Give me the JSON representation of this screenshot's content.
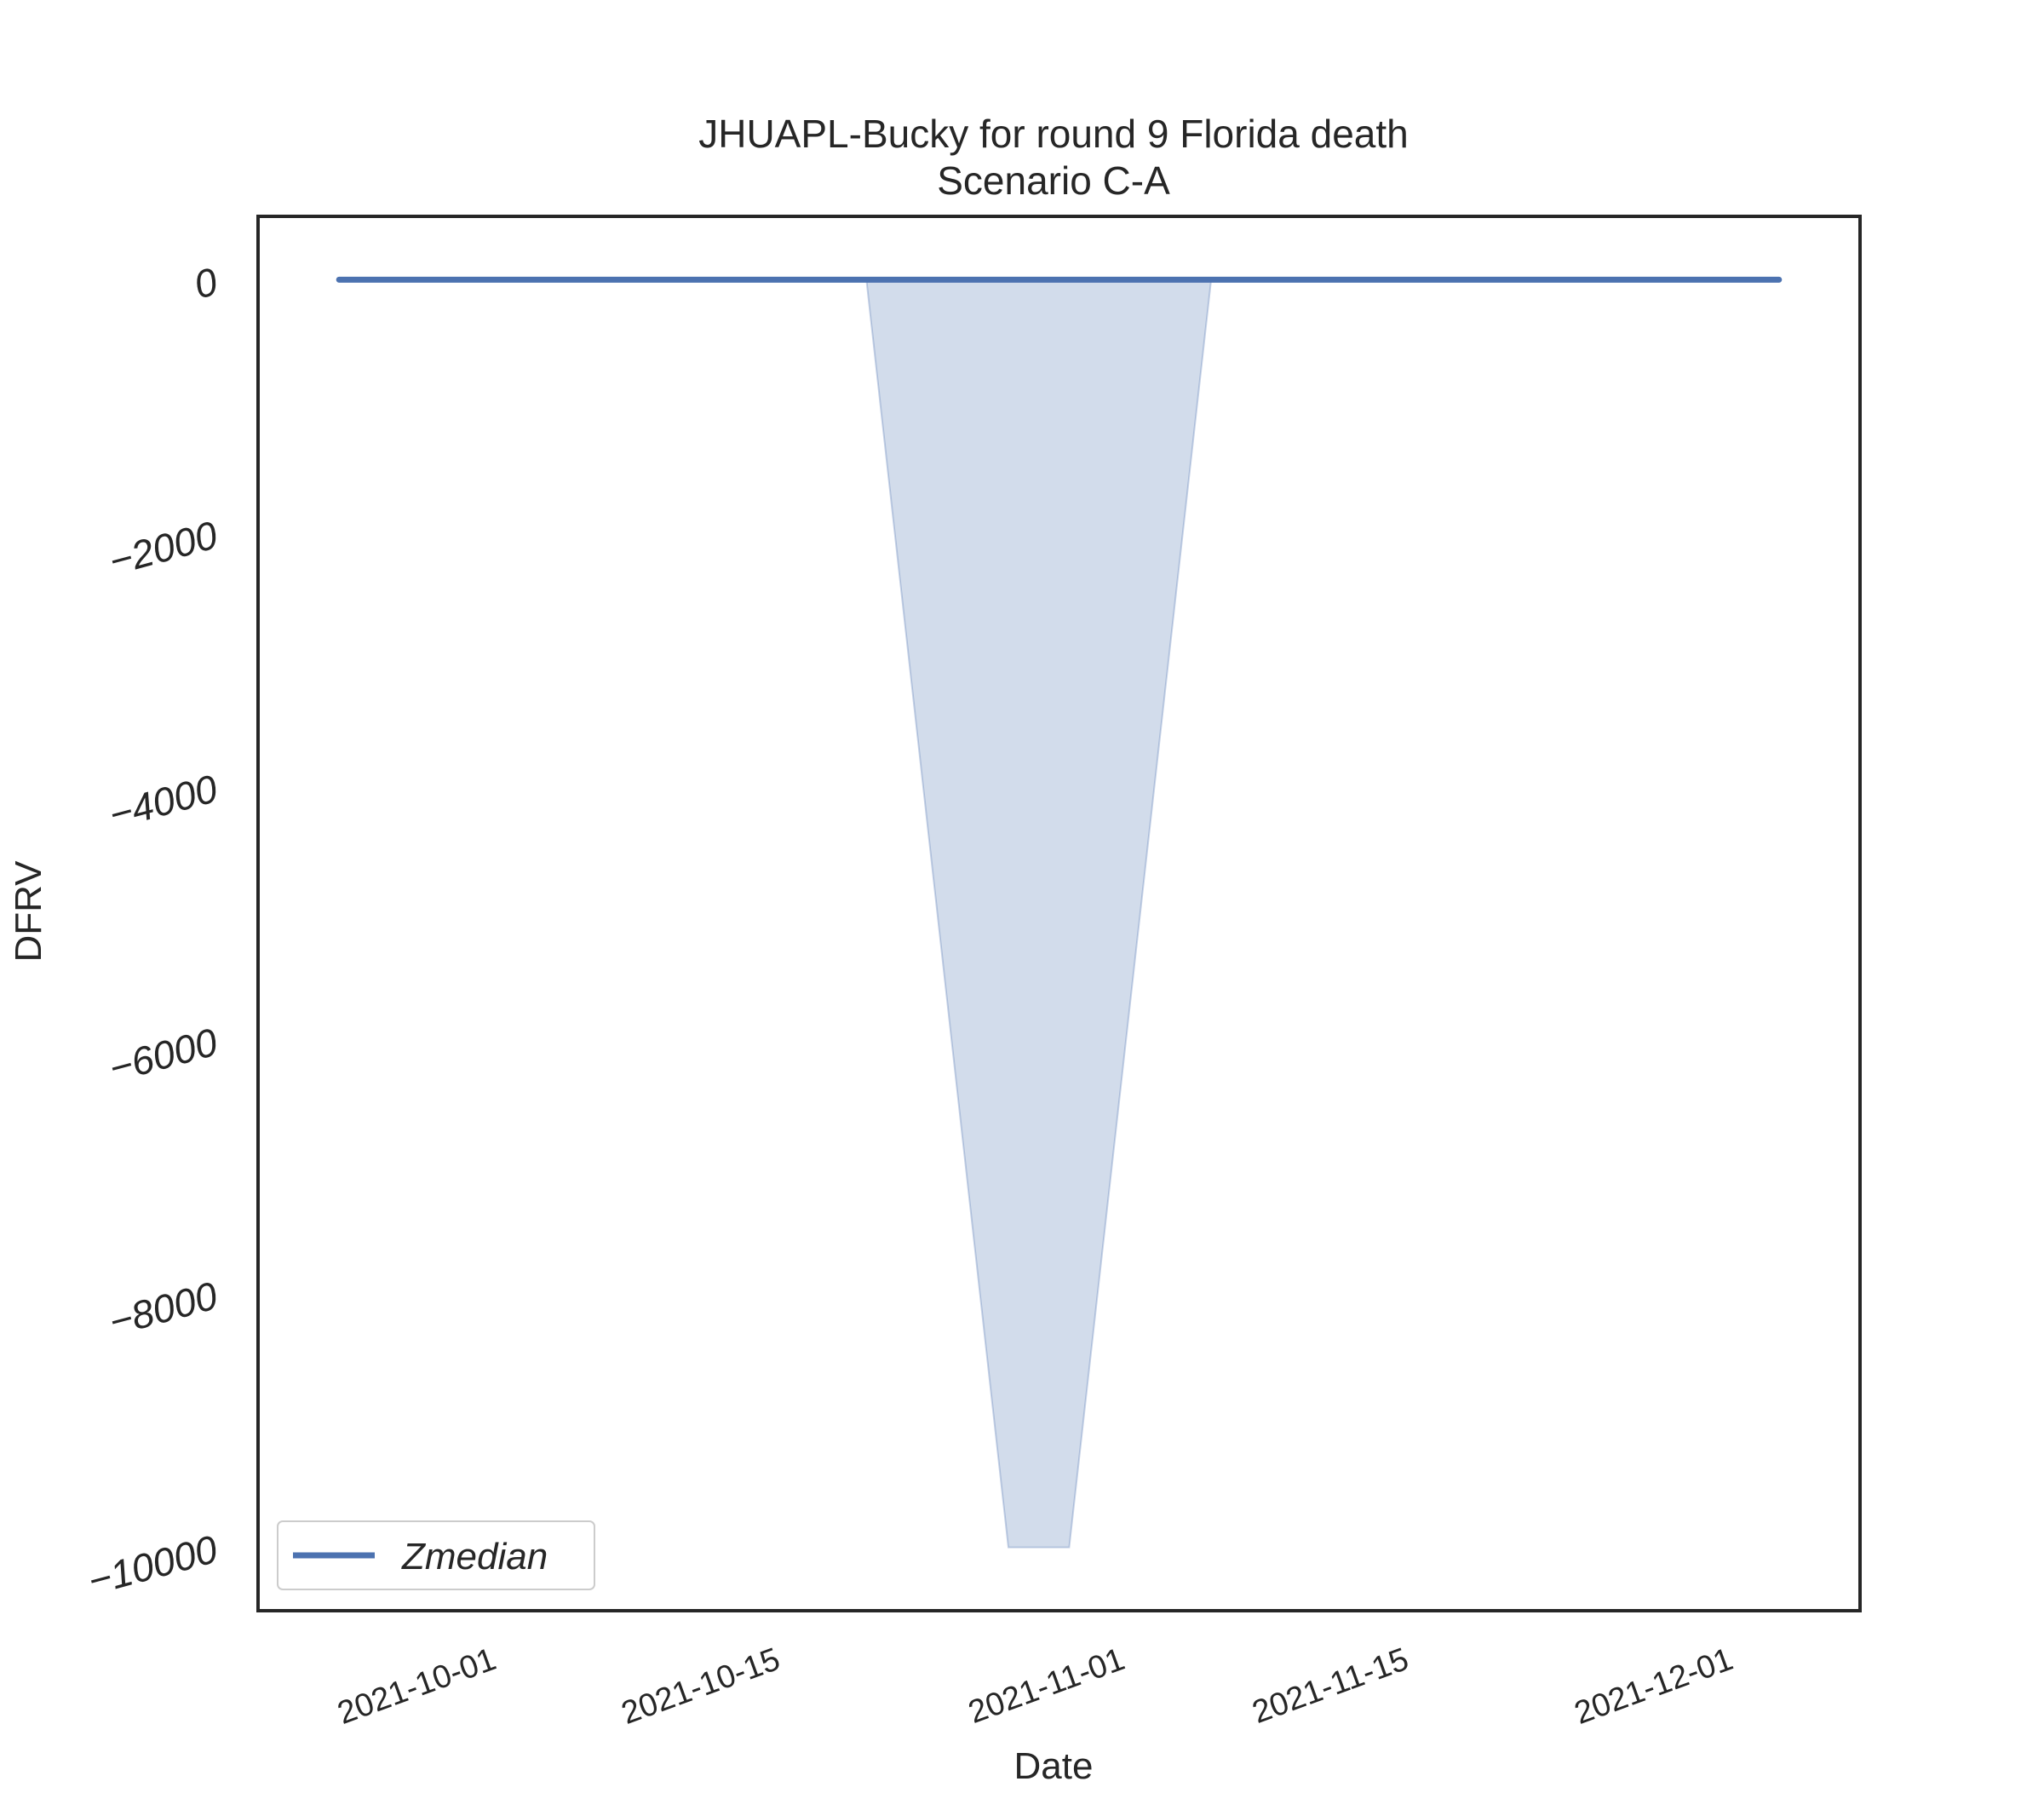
{
  "chart_data": {
    "type": "line",
    "title": "JHUAPL-Bucky for round 9 Florida death",
    "subtitle": "Scenario C-A",
    "xlabel": "Date",
    "ylabel": "DFRV",
    "ylim": [
      -10500,
      500
    ],
    "xlim": [
      "2021-09-20",
      "2021-12-08"
    ],
    "grid": false,
    "legend": {
      "placement": "lower-left",
      "entries": [
        "Zmedian"
      ]
    },
    "x_ticks": [
      "2021-10-01",
      "2021-10-15",
      "2021-11-01",
      "2021-11-15",
      "2021-12-01"
    ],
    "y_ticks": [
      0,
      -2000,
      -4000,
      -6000,
      -8000,
      -10000
    ],
    "series": [
      {
        "name": "Zmedian",
        "color": "#4c72b0",
        "x": [
          "2021-09-24",
          "2021-12-04"
        ],
        "y": [
          0,
          0
        ]
      }
    ],
    "band": {
      "color": "#4c72b0",
      "x": [
        "2021-10-20",
        "2021-10-27",
        "2021-10-30",
        "2021-11-06"
      ],
      "lower": [
        0,
        -10000,
        -10000,
        0
      ],
      "upper": [
        0,
        0,
        0,
        0
      ]
    }
  }
}
